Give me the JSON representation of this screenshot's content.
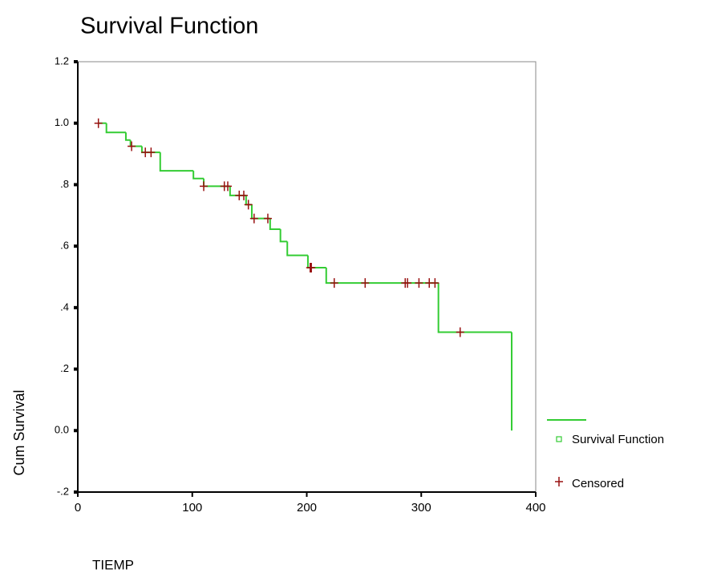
{
  "chart_data": {
    "type": "step",
    "title": "Survival Function",
    "xlabel": "TIEMP",
    "ylabel": "Cum Survival",
    "xlim": [
      0,
      400
    ],
    "ylim": [
      -0.2,
      1.2
    ],
    "xticks": [
      0,
      100,
      200,
      300,
      400
    ],
    "yticks": [
      {
        "value": -0.2,
        "label": "-.2"
      },
      {
        "value": 0,
        "label": "0.0"
      },
      {
        "value": 0.2,
        "label": ".2"
      },
      {
        "value": 0.4,
        "label": ".4"
      },
      {
        "value": 0.6,
        "label": ".6"
      },
      {
        "value": 0.8,
        "label": ".8"
      },
      {
        "value": 1.0,
        "label": "1.0"
      },
      1.2
    ],
    "series": [
      {
        "name": "Survival Function",
        "color": "#33cc33",
        "x": [
          18,
          25,
          42,
          46,
          56,
          72,
          101,
          110,
          133,
          147,
          152,
          168,
          177,
          183,
          201,
          217,
          315,
          379
        ],
        "values": [
          1.0,
          0.97,
          0.945,
          0.925,
          0.905,
          0.845,
          0.82,
          0.795,
          0.765,
          0.735,
          0.69,
          0.655,
          0.615,
          0.57,
          0.53,
          0.48,
          0.32,
          0
        ]
      },
      {
        "name": "Censored",
        "color": "#991111",
        "x": [
          18,
          47,
          59,
          64,
          110,
          128,
          131,
          141,
          145,
          149,
          154,
          166,
          203,
          204,
          224,
          251,
          286,
          288,
          298,
          307,
          312,
          334
        ],
        "values": [
          1.0,
          0.925,
          0.905,
          0.905,
          0.795,
          0.795,
          0.795,
          0.765,
          0.765,
          0.735,
          0.69,
          0.69,
          0.53,
          0.53,
          0.48,
          0.48,
          0.48,
          0.48,
          0.48,
          0.48,
          0.48,
          0.32
        ]
      }
    ]
  }
}
